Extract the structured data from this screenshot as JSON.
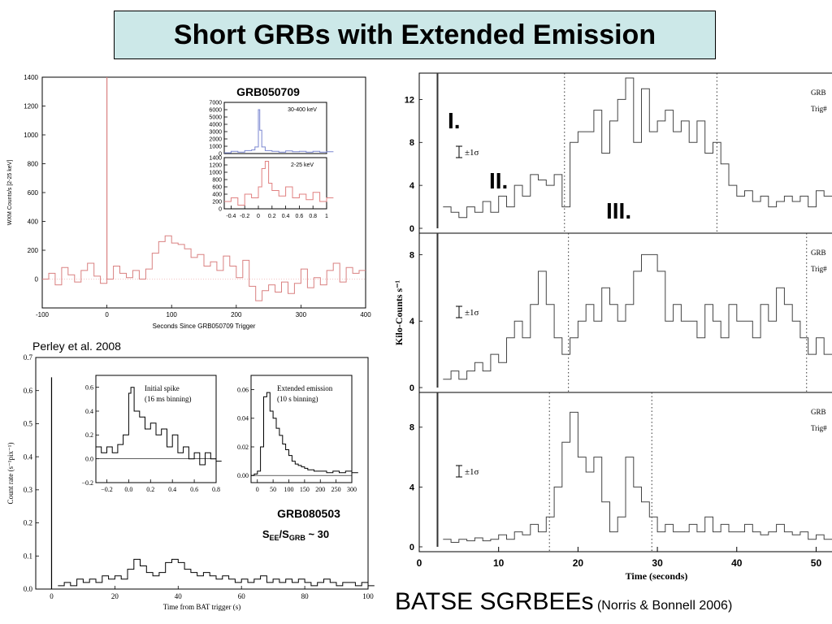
{
  "slide": {
    "title": "Short GRBs with Extended Emission",
    "citation_left": "Perley et al. 2008",
    "footer_main": "BATSE SGRBEEs",
    "footer_ref": "(Norris & Bonnell 2006)"
  },
  "chart_data": [
    {
      "id": "hete",
      "type": "line",
      "xlabel": "Seconds Since GRB050709 Trigger",
      "ylabel": "WXM Counts/s [2-25 keV]",
      "xlim": [
        -100,
        400
      ],
      "ylim": [
        -200,
        1400
      ],
      "xticks": [
        -100,
        0,
        100,
        200,
        300,
        400
      ],
      "yticks": [
        0,
        200,
        400,
        600,
        800,
        1000,
        1200,
        1400
      ],
      "color": "#d98080",
      "spike": {
        "x": 0,
        "y": 1400
      },
      "series": [
        {
          "x": [
            -100,
            -90,
            -80,
            -70,
            -60,
            -50,
            -40,
            -30,
            -20,
            -10,
            0,
            10,
            20,
            30,
            40,
            50,
            60,
            70,
            80,
            90,
            100,
            110,
            120,
            130,
            140,
            150,
            160,
            170,
            180,
            190,
            200,
            210,
            220,
            230,
            240,
            250,
            260,
            270,
            280,
            290,
            300,
            310,
            320,
            330,
            340,
            350,
            360,
            370,
            380,
            390
          ],
          "y": [
            0,
            40,
            -40,
            80,
            30,
            -20,
            60,
            110,
            20,
            -30,
            0,
            90,
            40,
            10,
            60,
            0,
            70,
            180,
            260,
            300,
            250,
            240,
            210,
            150,
            170,
            90,
            120,
            60,
            160,
            90,
            10,
            130,
            -50,
            -150,
            -80,
            -40,
            -90,
            -20,
            -100,
            -30,
            70,
            -60,
            10,
            -40,
            60,
            110,
            -20,
            80,
            40,
            60
          ]
        }
      ],
      "inset_title": "GRB050709",
      "insets": [
        {
          "id": "hete-hi",
          "label": "30-400 keV",
          "color": "#7a86d0",
          "ylim": [
            0,
            7000
          ],
          "yticks": [
            0,
            1000,
            2000,
            3000,
            4000,
            5000,
            6000,
            7000
          ],
          "xlim": [
            -0.5,
            1
          ],
          "x": [
            -0.5,
            -0.4,
            -0.3,
            -0.2,
            -0.1,
            -0.05,
            0,
            0.02,
            0.05,
            0.1,
            0.2,
            0.3,
            0.4,
            0.5,
            0.6,
            0.7,
            0.8,
            0.9,
            1.0
          ],
          "y": [
            100,
            300,
            200,
            400,
            500,
            900,
            6000,
            3200,
            900,
            400,
            300,
            200,
            350,
            250,
            300,
            200,
            300,
            200,
            250
          ]
        },
        {
          "id": "hete-lo",
          "label": "2-25 keV",
          "color": "#e08080",
          "ylim": [
            0,
            1400
          ],
          "yticks": [
            0,
            200,
            400,
            600,
            800,
            1000,
            1200,
            1400
          ],
          "xlim": [
            -0.5,
            1
          ],
          "xticks": [
            -0.4,
            -0.2,
            0,
            0.2,
            0.4,
            0.6,
            0.8,
            1
          ],
          "xticklabels": [
            "-0.4",
            "-0.2",
            "0",
            "0.2",
            "0.4",
            "0.6",
            "0.8",
            "1"
          ],
          "x": [
            -0.5,
            -0.4,
            -0.3,
            -0.2,
            -0.1,
            0,
            0.05,
            0.1,
            0.15,
            0.2,
            0.3,
            0.4,
            0.5,
            0.6,
            0.7,
            0.8,
            0.9,
            1.0
          ],
          "y": [
            200,
            300,
            100,
            400,
            300,
            600,
            1100,
            1300,
            700,
            500,
            350,
            600,
            300,
            400,
            250,
            450,
            200,
            300
          ]
        }
      ]
    },
    {
      "id": "swift",
      "type": "line",
      "xlabel": "Time from BAT trigger (s)",
      "ylabel": "Count rate (s⁻¹pix⁻¹)",
      "xlim": [
        -5,
        100
      ],
      "ylim": [
        0,
        0.7
      ],
      "xticks": [
        0,
        20,
        40,
        60,
        80,
        100
      ],
      "yticks": [
        0.0,
        0.1,
        0.2,
        0.3,
        0.4,
        0.5,
        0.6,
        0.7
      ],
      "yticklabels": [
        "0.0",
        "0.1",
        "0.2",
        "0.3",
        "0.4",
        "0.5",
        "0.6",
        "0.7"
      ],
      "spike": {
        "x": 0,
        "y": 0.64
      },
      "series": [
        {
          "x": [
            2,
            4,
            6,
            8,
            10,
            12,
            14,
            16,
            18,
            20,
            22,
            24,
            26,
            28,
            30,
            32,
            34,
            36,
            38,
            40,
            42,
            44,
            46,
            48,
            50,
            52,
            54,
            56,
            58,
            60,
            62,
            64,
            66,
            68,
            70,
            72,
            74,
            76,
            78,
            80,
            82,
            84,
            86,
            88,
            90,
            92,
            94,
            96,
            98,
            100
          ],
          "y": [
            0.01,
            0.02,
            0.01,
            0.03,
            0.02,
            0.03,
            0.02,
            0.04,
            0.03,
            0.04,
            0.03,
            0.06,
            0.09,
            0.07,
            0.05,
            0.04,
            0.05,
            0.08,
            0.09,
            0.08,
            0.06,
            0.05,
            0.04,
            0.05,
            0.04,
            0.03,
            0.04,
            0.03,
            0.02,
            0.03,
            0.02,
            0.03,
            0.04,
            0.02,
            0.03,
            0.02,
            0.03,
            0.02,
            0.03,
            0.02,
            0.01,
            0.02,
            0.03,
            0.02,
            0.01,
            0.02,
            0.02,
            0.01,
            0.02,
            0.01
          ]
        }
      ],
      "annot_name": "GRB080503",
      "insets": [
        {
          "id": "swift-spike",
          "title1": "Initial spike",
          "title2": "(16 ms binning)",
          "xlim": [
            -0.3,
            0.8
          ],
          "ylim": [
            -0.2,
            0.7
          ],
          "xticks": [
            -0.2,
            0,
            0.2,
            0.4,
            0.6,
            0.8
          ],
          "xticklabels": [
            "−0.2",
            "0.0",
            "0.2",
            "0.4",
            "0.6",
            "0.8"
          ],
          "yticks": [
            -0.2,
            0,
            0.2,
            0.4,
            0.6
          ],
          "yticklabels": [
            "−0.2",
            "0.0",
            "0.2",
            "0.4",
            "0.6"
          ],
          "x": [
            -0.3,
            -0.25,
            -0.2,
            -0.15,
            -0.1,
            -0.05,
            0,
            0.02,
            0.05,
            0.1,
            0.15,
            0.2,
            0.25,
            0.3,
            0.35,
            0.4,
            0.45,
            0.5,
            0.55,
            0.6,
            0.65,
            0.7,
            0.75,
            0.8
          ],
          "y": [
            0.1,
            0.05,
            0.1,
            0.05,
            0.12,
            0.2,
            0.55,
            0.6,
            0.4,
            0.35,
            0.25,
            0.3,
            0.2,
            0.25,
            0.1,
            0.2,
            0.05,
            0.1,
            0.0,
            0.05,
            -0.05,
            0.05,
            0.0,
            -0.02
          ]
        },
        {
          "id": "swift-ext",
          "title1": "Extended emission",
          "title2": "(10 s binning)",
          "xlim": [
            -20,
            300
          ],
          "ylim": [
            -0.005,
            0.07
          ],
          "xticks": [
            0,
            50,
            100,
            150,
            200,
            250,
            300
          ],
          "xticklabels": [
            "0",
            "50",
            "100",
            "150",
            "200",
            "250",
            "300"
          ],
          "yticks": [
            0,
            0.02,
            0.04,
            0.06
          ],
          "yticklabels": [
            "0.00",
            "0.02",
            "0.04",
            "0.06"
          ],
          "x": [
            -20,
            -10,
            0,
            10,
            20,
            30,
            40,
            50,
            60,
            70,
            80,
            90,
            100,
            110,
            120,
            130,
            140,
            150,
            160,
            170,
            180,
            190,
            200,
            220,
            240,
            260,
            280,
            300
          ],
          "y": [
            0.0,
            0.001,
            0.003,
            0.02,
            0.055,
            0.058,
            0.045,
            0.04,
            0.033,
            0.028,
            0.022,
            0.018,
            0.014,
            0.01,
            0.008,
            0.007,
            0.006,
            0.005,
            0.004,
            0.004,
            0.003,
            0.003,
            0.003,
            0.002,
            0.003,
            0.002,
            0.003,
            0.002
          ]
        }
      ]
    },
    {
      "id": "batse",
      "type": "line",
      "xlabel": "Time (seconds)",
      "ylabel": "Kilo-Counts s⁻¹",
      "xlim": [
        0,
        52
      ],
      "xticks": [
        0,
        10,
        20,
        30,
        40,
        50
      ],
      "legend_grb": "GRB",
      "legend_trig": "Trig#",
      "error_label": "±1σ",
      "phase_labels": [
        "I.",
        "II.",
        "III."
      ],
      "panels": [
        {
          "id": "batse-1",
          "ylim": [
            0,
            14
          ],
          "yticks": [
            0,
            4,
            8,
            12
          ],
          "spike": {
            "x": 2.3,
            "y": 14
          },
          "dotted": [
            18.3,
            37.5
          ],
          "x": [
            3,
            4,
            5,
            6,
            7,
            8,
            9,
            10,
            11,
            12,
            13,
            14,
            15,
            16,
            17,
            18,
            19,
            20,
            21,
            22,
            23,
            24,
            25,
            26,
            27,
            28,
            29,
            30,
            31,
            32,
            33,
            34,
            35,
            36,
            37,
            38,
            39,
            40,
            41,
            42,
            43,
            44,
            45,
            46,
            47,
            48,
            49,
            50,
            51
          ],
          "y": [
            2,
            1.5,
            1,
            2,
            1.5,
            2.5,
            1.5,
            3,
            2,
            4,
            3,
            5,
            4.5,
            4,
            5,
            2,
            8,
            9,
            9,
            11,
            7,
            10,
            12,
            14,
            8,
            13,
            9,
            10,
            11,
            9,
            10,
            8,
            10,
            7,
            8,
            6,
            4,
            3,
            3.5,
            2.5,
            3,
            2,
            2.5,
            3,
            2.5,
            3,
            2,
            3.5,
            3
          ]
        },
        {
          "id": "batse-2",
          "ylim": [
            0,
            9
          ],
          "yticks": [
            0,
            4,
            8
          ],
          "spike": {
            "x": 2.3,
            "y": 9
          },
          "dotted": [
            18.8,
            48.8
          ],
          "x": [
            3,
            4,
            5,
            6,
            7,
            8,
            9,
            10,
            11,
            12,
            13,
            14,
            15,
            16,
            17,
            18,
            19,
            20,
            21,
            22,
            23,
            24,
            25,
            26,
            27,
            28,
            29,
            30,
            31,
            32,
            33,
            34,
            35,
            36,
            37,
            38,
            39,
            40,
            41,
            42,
            43,
            44,
            45,
            46,
            47,
            48,
            49,
            50,
            51
          ],
          "y": [
            0.5,
            1,
            0.5,
            1,
            1.5,
            1,
            2,
            1.5,
            3,
            4,
            3,
            5,
            7,
            5,
            3,
            2,
            3,
            4,
            5,
            4,
            6,
            5,
            4,
            5,
            7,
            8,
            8,
            7,
            4,
            5,
            4,
            4,
            3,
            5,
            4,
            3,
            5,
            4,
            4,
            3,
            5,
            4,
            6,
            5,
            4,
            3,
            2,
            3,
            2
          ]
        },
        {
          "id": "batse-3",
          "ylim": [
            0,
            10
          ],
          "yticks": [
            0,
            4,
            8
          ],
          "spike": {
            "x": 2.3,
            "y": 10
          },
          "dotted": [
            16.4,
            29.3
          ],
          "x": [
            3,
            4,
            5,
            6,
            7,
            8,
            9,
            10,
            11,
            12,
            13,
            14,
            15,
            16,
            17,
            18,
            19,
            20,
            21,
            22,
            23,
            24,
            25,
            26,
            27,
            28,
            29,
            30,
            31,
            32,
            33,
            34,
            35,
            36,
            37,
            38,
            39,
            40,
            41,
            42,
            43,
            44,
            45,
            46,
            47,
            48,
            49,
            50,
            51
          ],
          "y": [
            0.5,
            0.3,
            0.5,
            0.4,
            0.6,
            0.4,
            0.5,
            0.8,
            0.5,
            1,
            0.8,
            1.5,
            1,
            2,
            4,
            7,
            9,
            6,
            5,
            6,
            3,
            1,
            2,
            6,
            4,
            3,
            2,
            1,
            1.5,
            1,
            1,
            1.5,
            1,
            2,
            1,
            1.5,
            1,
            1,
            1.5,
            1,
            0.8,
            1,
            1.5,
            1,
            0.8,
            1,
            0.5,
            0.8,
            0.5
          ]
        }
      ]
    }
  ]
}
